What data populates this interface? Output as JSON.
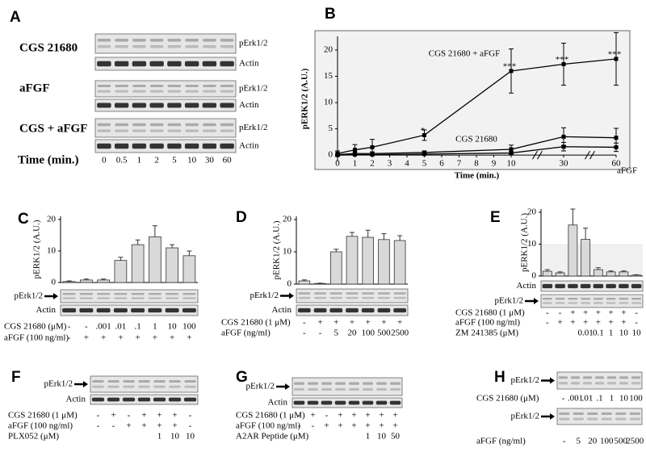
{
  "figure": {
    "panel_labels": [
      "A",
      "B",
      "C",
      "D",
      "E",
      "F",
      "G",
      "H"
    ],
    "panel_a": {
      "rows": [
        {
          "label": "CGS 21680",
          "blots": [
            "pErk1/2",
            "Actin"
          ]
        },
        {
          "label": "aFGF",
          "blots": [
            "pErk1/2",
            "Actin"
          ]
        },
        {
          "label": "CGS + aFGF",
          "blots": [
            "pErk1/2",
            "Actin"
          ]
        }
      ],
      "time_label": "Time (min.)",
      "times": [
        0,
        0.5,
        1,
        2,
        5,
        10,
        30,
        60
      ]
    },
    "panel_f": {
      "blots": [
        "pErk1/2",
        "Actin"
      ],
      "conditions": [
        {
          "label": "CGS 21680 (1 μM)",
          "values": [
            "-",
            "+",
            "-",
            "+",
            "+",
            "+",
            "-"
          ]
        },
        {
          "label": "aFGF (100 ng/ml)",
          "values": [
            "-",
            "-",
            "+",
            "+",
            "+",
            "+",
            "-"
          ]
        },
        {
          "label": "PLX052 (μM)",
          "values": [
            null,
            null,
            null,
            null,
            "1",
            "10",
            "10"
          ]
        }
      ]
    },
    "panel_g": {
      "blots": [
        "pErk1/2",
        "Actin"
      ],
      "conditions": [
        {
          "label": "CGS 21680 (1 μM)",
          "values": [
            "-",
            "+",
            "-",
            "+",
            "+",
            "+",
            "+",
            "+"
          ]
        },
        {
          "label": "aFGF (100 ng/ml)",
          "values": [
            "-",
            "-",
            "+",
            "+",
            "+",
            "+",
            "+",
            "+"
          ]
        },
        {
          "label": "A2AR Peptide (μM)",
          "values": [
            null,
            null,
            null,
            null,
            null,
            "1",
            "10",
            "50"
          ]
        }
      ]
    },
    "panel_h": {
      "blots": [
        {
          "label": "pErk1/2",
          "condition": {
            "label": "CGS 21680 (μM)",
            "values": [
              "-",
              ".001",
              ".01",
              ".1",
              "1",
              "10",
              "100"
            ]
          }
        },
        {
          "label": "pErk1/2",
          "condition": {
            "label": "aFGF (ng/ml)",
            "values": [
              "-",
              "5",
              "20",
              "100",
              "500",
              "2500"
            ]
          }
        }
      ]
    }
  },
  "chart_data": [
    {
      "type": "line",
      "xlabel": "Time (min.)",
      "ylabel": "pERK1/2 (A.U.)",
      "x": [
        0,
        1,
        2,
        5,
        10,
        30,
        60
      ],
      "xlim": [
        0,
        60
      ],
      "xticks": [
        0,
        1,
        2,
        3,
        4,
        5,
        6,
        7,
        8,
        9,
        10,
        30,
        60
      ],
      "broken_axis": true,
      "ylim": [
        -1.2,
        22.6
      ],
      "yticks": [
        0,
        5,
        10,
        15,
        20
      ],
      "background": "#f2f2f2",
      "series": [
        {
          "name": "CGS 21680 + aFGF",
          "color": "#000000",
          "values": [
            0.3,
            1,
            1.5,
            3.8,
            16,
            17.3,
            18.3
          ],
          "errors": [
            0.5,
            1,
            1.5,
            1,
            4.2,
            4,
            5
          ],
          "value_annotations": [
            null,
            null,
            null,
            "*",
            "***",
            "***",
            "***"
          ]
        },
        {
          "name": "CGS 21680",
          "color": "#000000",
          "values": [
            0.1,
            0.3,
            0.3,
            0.5,
            1.1,
            3.5,
            3.3
          ],
          "errors": [
            0.2,
            0.3,
            0.3,
            0.3,
            0.8,
            1.7,
            1.8
          ]
        },
        {
          "name": "aFGF",
          "color": "#000000",
          "values": [
            0,
            0.1,
            0.1,
            0.2,
            0.4,
            1.6,
            1.5
          ],
          "errors": [
            0.1,
            0.1,
            0.1,
            0.1,
            0.3,
            0.8,
            0.8
          ]
        }
      ]
    },
    {
      "type": "bar",
      "ylabel": "pERK1/2 (A.U.)",
      "color": "#d9d9d9",
      "values": [
        0.3,
        0.8,
        0.8,
        7,
        12,
        14.5,
        11,
        8.5
      ],
      "errors": [
        0.2,
        0.3,
        0.3,
        1,
        1.5,
        3.5,
        1,
        1.5
      ],
      "ylim": [
        0,
        21
      ],
      "yticks": [
        0,
        10,
        20
      ],
      "blots": [
        "pErk1/2",
        "Actin"
      ],
      "conditions": [
        {
          "label": "CGS 21680 (μM)",
          "values": [
            "-",
            "-",
            ".001",
            ".01",
            ".1",
            "1",
            "10",
            "100"
          ]
        },
        {
          "label": "aFGF (100 ng/ml)",
          "values": [
            "-",
            "+",
            "+",
            "+",
            "+",
            "+",
            "+",
            "+"
          ]
        }
      ]
    },
    {
      "type": "bar",
      "ylabel": "pERK1/2 (A.U.)",
      "color": "#d9d9d9",
      "values": [
        1,
        0.2,
        10,
        14.8,
        14.5,
        13.8,
        13.5
      ],
      "errors": [
        0.3,
        0.1,
        0.8,
        1.2,
        2.2,
        1.8,
        1.5
      ],
      "ylim": [
        0,
        21
      ],
      "yticks": [
        0,
        10,
        20
      ],
      "blots": [
        "pErk1/2",
        "Actin"
      ],
      "conditions": [
        {
          "label": "CGS 21680 (1 μM)",
          "values": [
            "-",
            "+",
            "+",
            "+",
            "+",
            "+",
            "+"
          ]
        },
        {
          "label": "aFGF (ng/ml)",
          "values": [
            "-",
            "-",
            "5",
            "20",
            "100",
            "500",
            "2500"
          ]
        }
      ]
    },
    {
      "type": "bar",
      "ylabel": "pERK1/2 (A.U.)",
      "color": "#d9d9d9",
      "values": [
        1.5,
        1,
        16,
        11.5,
        2,
        1.3,
        1.3,
        0.3
      ],
      "errors": [
        0.5,
        0.3,
        5,
        3.5,
        0.6,
        0.3,
        0.3,
        0.1
      ],
      "ylim": [
        0,
        21
      ],
      "yticks": [
        0,
        10,
        20
      ],
      "blots": [
        "Actin",
        "pErk1/2"
      ],
      "conditions": [
        {
          "label": "CGS 21680 (1 μM)",
          "values": [
            "-",
            "-",
            "+",
            "+",
            "+",
            "+",
            "+",
            "-"
          ]
        },
        {
          "label": "aFGF (100 ng/ml)",
          "values": [
            "-",
            "+",
            "+",
            "+",
            "+",
            "+",
            "+",
            "-"
          ]
        },
        {
          "label": "ZM 241385 (μM)",
          "values": [
            null,
            null,
            null,
            "0.01",
            "0.1",
            "1",
            "10",
            "10"
          ]
        }
      ]
    }
  ]
}
